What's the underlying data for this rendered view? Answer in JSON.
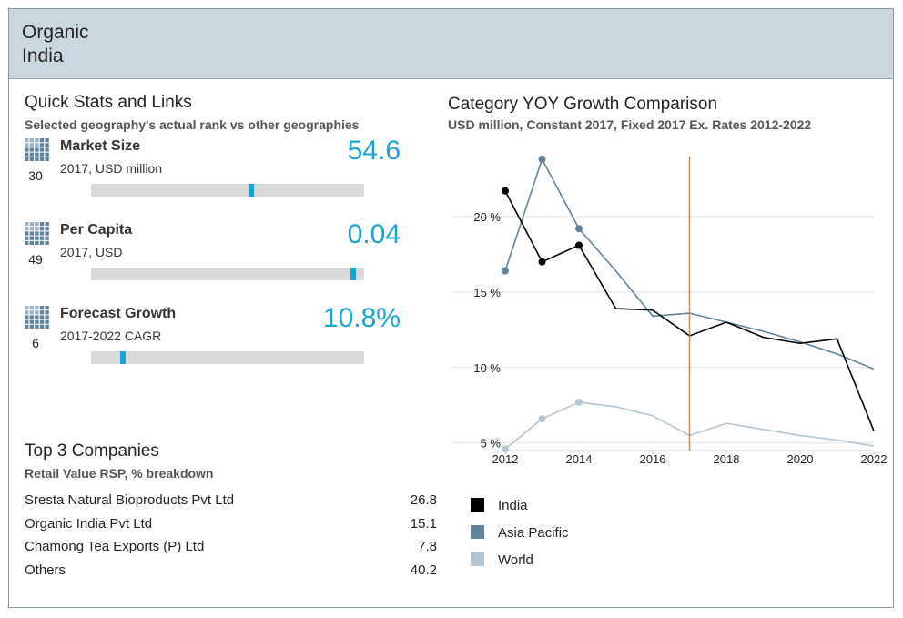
{
  "header": {
    "title": "Organic India"
  },
  "quick_stats": {
    "title": "Quick Stats and Links",
    "subtitle": "Selected geography's actual rank vs other geographies",
    "rank_scale": [
      0,
      51
    ],
    "items": [
      {
        "rank": 30,
        "label": "Market Size",
        "detail": "2017, USD million",
        "value": "54.6"
      },
      {
        "rank": 49,
        "label": "Per Capita",
        "detail": "2017, USD",
        "value": "0.04"
      },
      {
        "rank": 6,
        "label": "Forecast Growth",
        "detail": "2017-2022 CAGR",
        "value": "10.8%"
      }
    ]
  },
  "top_companies": {
    "title": "Top 3 Companies",
    "subtitle": "Retail Value RSP, % breakdown",
    "rows": [
      {
        "name": "Sresta Natural Bioproducts Pvt Ltd",
        "value": 26.8
      },
      {
        "name": "Organic India Pvt Ltd",
        "value": 15.1
      },
      {
        "name": "Chamong Tea Exports (P) Ltd",
        "value": 7.8
      },
      {
        "name": "Others",
        "value": 40.2
      }
    ]
  },
  "chart_data": {
    "type": "line",
    "title": "Category YOY Growth Comparison",
    "subtitle": "USD million, Constant 2017, Fixed 2017 Ex. Rates 2012-2022",
    "x": [
      2012,
      2013,
      2014,
      2015,
      2016,
      2017,
      2018,
      2019,
      2020,
      2021,
      2022
    ],
    "xlim": [
      2012,
      2022
    ],
    "xticks": [
      2012,
      2014,
      2016,
      2018,
      2020,
      2022
    ],
    "ylim": [
      4.5,
      24
    ],
    "yticks": [
      {
        "value": 5,
        "label": "5 %"
      },
      {
        "value": 10,
        "label": "10 %"
      },
      {
        "value": 15,
        "label": "15 %"
      },
      {
        "value": 20,
        "label": "20 %"
      }
    ],
    "grid": true,
    "reference_line_x": 2017,
    "reference_line_color": "#e8822a",
    "series": [
      {
        "name": "India",
        "color": "#000000",
        "values": [
          21.7,
          17.0,
          18.1,
          13.9,
          13.8,
          12.1,
          13.0,
          12.0,
          11.6,
          11.9,
          5.8
        ]
      },
      {
        "name": "Asia Pacific",
        "color": "#5f8399",
        "values": [
          16.4,
          23.8,
          19.2,
          16.4,
          13.4,
          13.6,
          13.0,
          12.4,
          11.7,
          10.9,
          9.9
        ]
      },
      {
        "name": "World",
        "color": "#b3c5d3",
        "values": [
          4.6,
          6.6,
          7.7,
          7.4,
          6.8,
          5.5,
          6.3,
          5.9,
          5.5,
          5.2,
          4.8
        ]
      }
    ]
  }
}
